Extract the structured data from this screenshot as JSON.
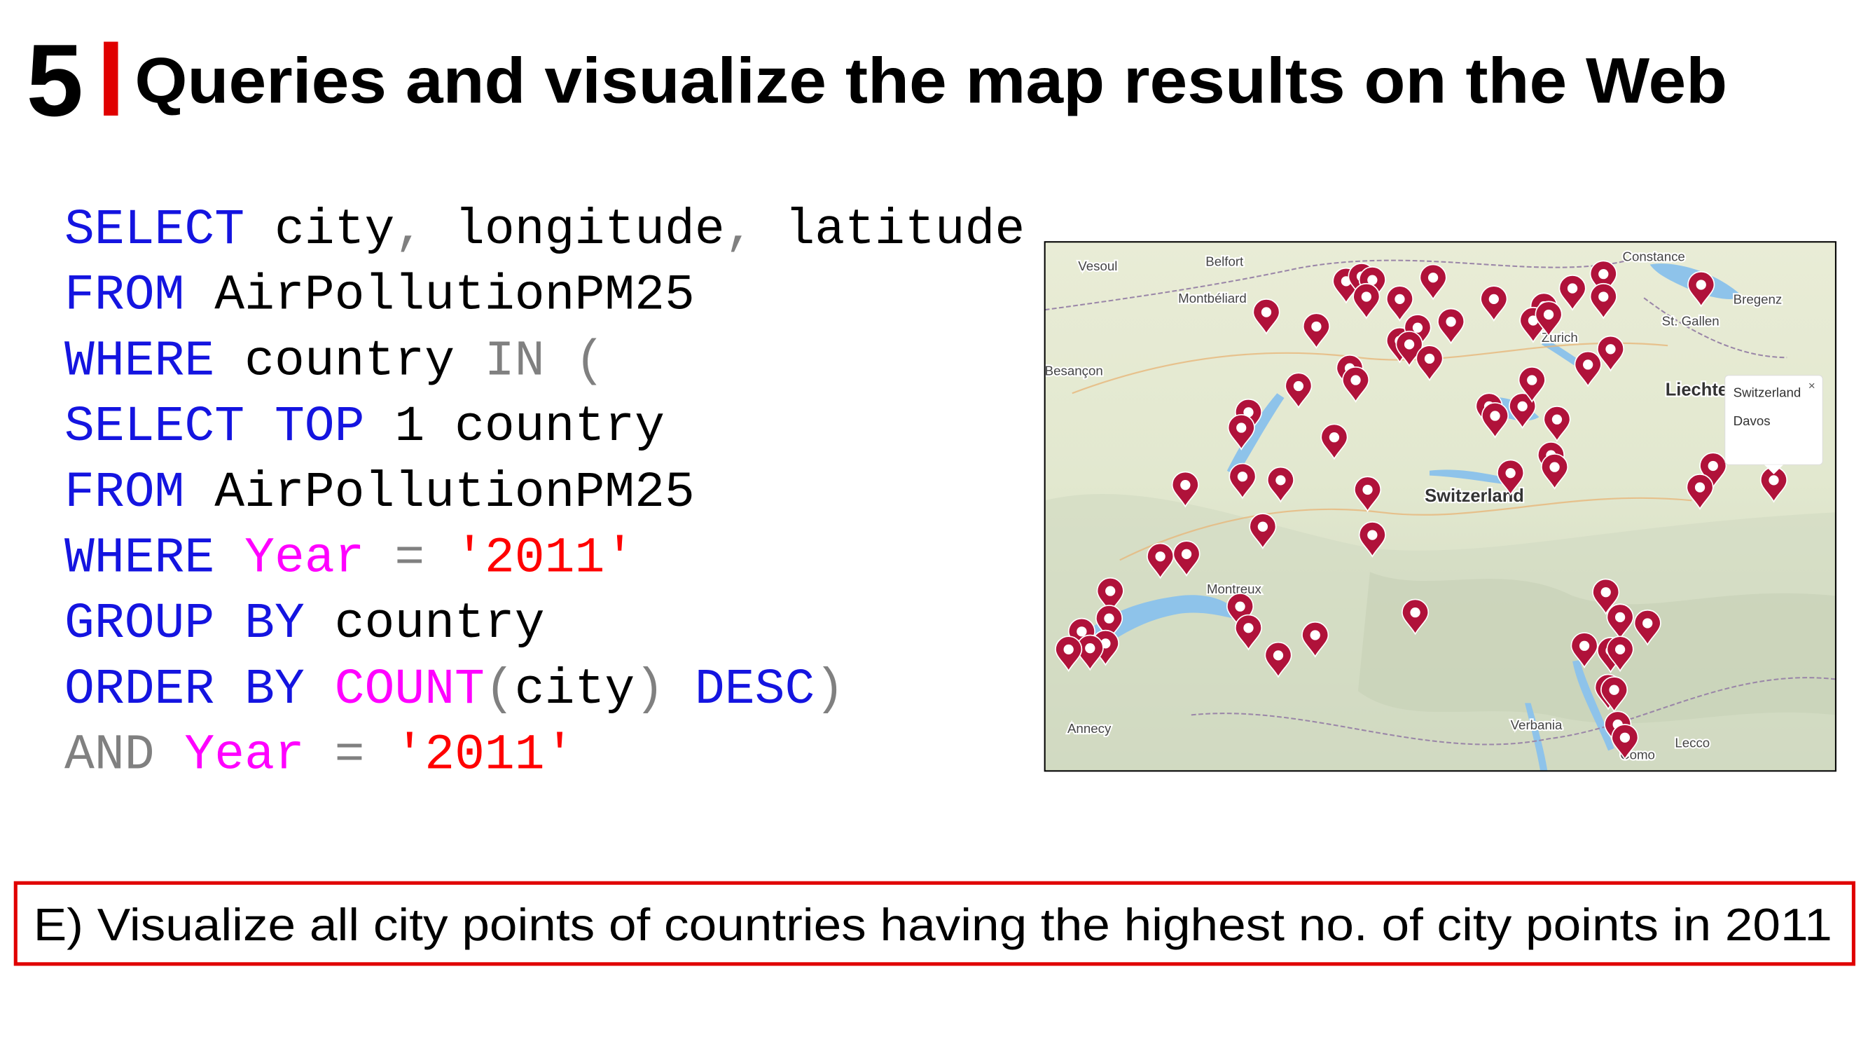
{
  "header": {
    "number": "5",
    "title": "Queries and visualize the map results on the Web"
  },
  "code": {
    "lines": [
      {
        "tokens": [
          {
            "text": "SELECT",
            "kind": "keyword"
          },
          {
            "text": " city",
            "kind": "plain"
          },
          {
            "text": ",",
            "kind": "punct"
          },
          {
            "text": " longitude",
            "kind": "plain"
          },
          {
            "text": ",",
            "kind": "punct"
          },
          {
            "text": " latitude",
            "kind": "plain"
          }
        ]
      },
      {
        "tokens": [
          {
            "text": "FROM",
            "kind": "keyword"
          },
          {
            "text": " AirPollutionPM25",
            "kind": "plain"
          }
        ]
      },
      {
        "tokens": [
          {
            "text": "WHERE",
            "kind": "keyword"
          },
          {
            "text": " country",
            "kind": "plain"
          },
          {
            "text": " IN (",
            "kind": "punct"
          }
        ]
      },
      {
        "tokens": [
          {
            "text": "SELECT",
            "kind": "keyword"
          },
          {
            "text": " TOP",
            "kind": "keyword"
          },
          {
            "text": " 1 country",
            "kind": "plain"
          }
        ]
      },
      {
        "tokens": [
          {
            "text": "FROM",
            "kind": "keyword"
          },
          {
            "text": " AirPollutionPM25",
            "kind": "plain"
          }
        ]
      },
      {
        "tokens": [
          {
            "text": "WHERE",
            "kind": "keyword"
          },
          {
            "text": " Year",
            "kind": "function"
          },
          {
            "text": " =",
            "kind": "punct"
          },
          {
            "text": " '2011'",
            "kind": "string"
          }
        ]
      },
      {
        "tokens": [
          {
            "text": "GROUP BY",
            "kind": "keyword"
          },
          {
            "text": " country",
            "kind": "plain"
          }
        ]
      },
      {
        "tokens": [
          {
            "text": "ORDER BY",
            "kind": "keyword"
          },
          {
            "text": " COUNT",
            "kind": "function"
          },
          {
            "text": "(",
            "kind": "punct"
          },
          {
            "text": "city",
            "kind": "plain"
          },
          {
            "text": ")",
            "kind": "punct"
          },
          {
            "text": " DESC",
            "kind": "keyword"
          },
          {
            "text": ")",
            "kind": "punct"
          }
        ]
      },
      {
        "tokens": [
          {
            "text": "AND",
            "kind": "punct"
          },
          {
            "text": " Year",
            "kind": "function"
          },
          {
            "text": " =",
            "kind": "punct"
          },
          {
            "text": " '2011'",
            "kind": "string"
          }
        ]
      }
    ]
  },
  "map": {
    "labels": [
      {
        "text": "Vesoul",
        "kind": "town"
      },
      {
        "text": "Belfort",
        "kind": "town"
      },
      {
        "text": "Constance",
        "kind": "town"
      },
      {
        "text": "Montbéliard",
        "kind": "town"
      },
      {
        "text": "Bregenz",
        "kind": "town"
      },
      {
        "text": "St. Gallen",
        "kind": "town"
      },
      {
        "text": "Besançon",
        "kind": "town"
      },
      {
        "text": "Zurich",
        "kind": "town"
      },
      {
        "text": "Liechte",
        "kind": "country"
      },
      {
        "text": "Switzerland",
        "kind": "country"
      },
      {
        "text": "Montreux",
        "kind": "town"
      },
      {
        "text": "Annecy",
        "kind": "town"
      },
      {
        "text": "Verbania",
        "kind": "town"
      },
      {
        "text": "Lecco",
        "kind": "town"
      },
      {
        "text": "Como",
        "kind": "town"
      }
    ],
    "popup": {
      "country": "Switzerland",
      "city": "Davos",
      "close": "×"
    }
  },
  "caption": "E) Visualize all city points of countries having the highest no. of city points in 2011"
}
